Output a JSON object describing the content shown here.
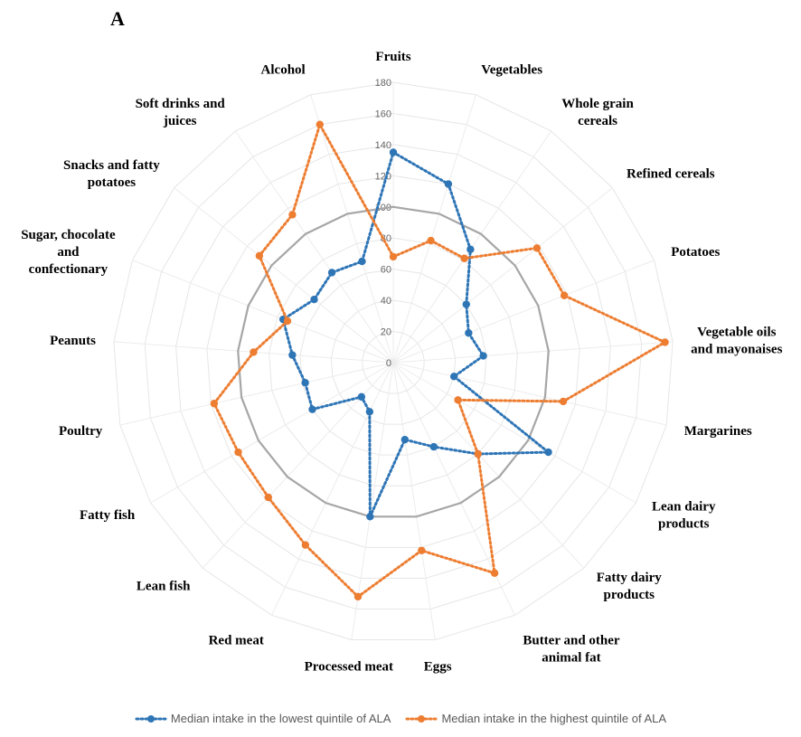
{
  "panel_label": "A",
  "chart_data": {
    "type": "radar",
    "categories": [
      "Fruits",
      "Vegetables",
      "Whole grain cereals",
      "Refined cereals",
      "Potatoes",
      "Vegetable oils and mayonaises",
      "Margarines",
      "Lean dairy products",
      "Fatty dairy products",
      "Butter and other animal fat",
      "Eggs",
      "Processed meat",
      "Red meat",
      "Lean fish",
      "Fatty fish",
      "Poultry",
      "Peanuts",
      "Sugar, chocolate and confectionary",
      "Snacks and fatty potatoes",
      "Soft drinks and juices",
      "Alcohol"
    ],
    "category_label_lines": [
      [
        "Fruits"
      ],
      [
        "Vegetables"
      ],
      [
        "Whole grain",
        "cereals"
      ],
      [
        "Refined cereals"
      ],
      [
        "Potatoes"
      ],
      [
        "Vegetable oils",
        "and mayonaises"
      ],
      [
        "Margarines"
      ],
      [
        "Lean dairy",
        "products"
      ],
      [
        "Fatty dairy",
        "products"
      ],
      [
        "Butter and other",
        "animal fat"
      ],
      [
        "Eggs"
      ],
      [
        "Processed meat"
      ],
      [
        "Red meat"
      ],
      [
        "Lean fish"
      ],
      [
        "Fatty fish"
      ],
      [
        "Poultry"
      ],
      [
        "Peanuts"
      ],
      [
        "Sugar, chocolate",
        "and",
        "confectionary"
      ],
      [
        "Snacks and fatty",
        "potatoes"
      ],
      [
        "Soft drinks and",
        "juices"
      ],
      [
        "Alcohol"
      ]
    ],
    "radial_ticks": [
      0,
      20,
      40,
      60,
      80,
      100,
      120,
      140,
      160,
      180
    ],
    "rlim": [
      0,
      180
    ],
    "reference_value": 100,
    "series": [
      {
        "name": "Median intake in the lowest quintile of ALA",
        "color": "#2e75b6",
        "values": [
          135,
          120,
          88,
          60,
          52,
          58,
          40,
          115,
          80,
          60,
          50,
          100,
          35,
          30,
          60,
          58,
          65,
          76,
          65,
          70,
          68
        ]
      },
      {
        "name": "Median intake in the highest quintile of ALA",
        "color": "#ed7d31",
        "values": [
          68,
          82,
          81,
          118,
          118,
          175,
          112,
          48,
          80,
          150,
          122,
          152,
          130,
          118,
          115,
          118,
          90,
          73,
          110,
          115,
          160
        ]
      }
    ],
    "reference_color": "#a6a6a6",
    "grid": true,
    "legend_position": "bottom"
  }
}
